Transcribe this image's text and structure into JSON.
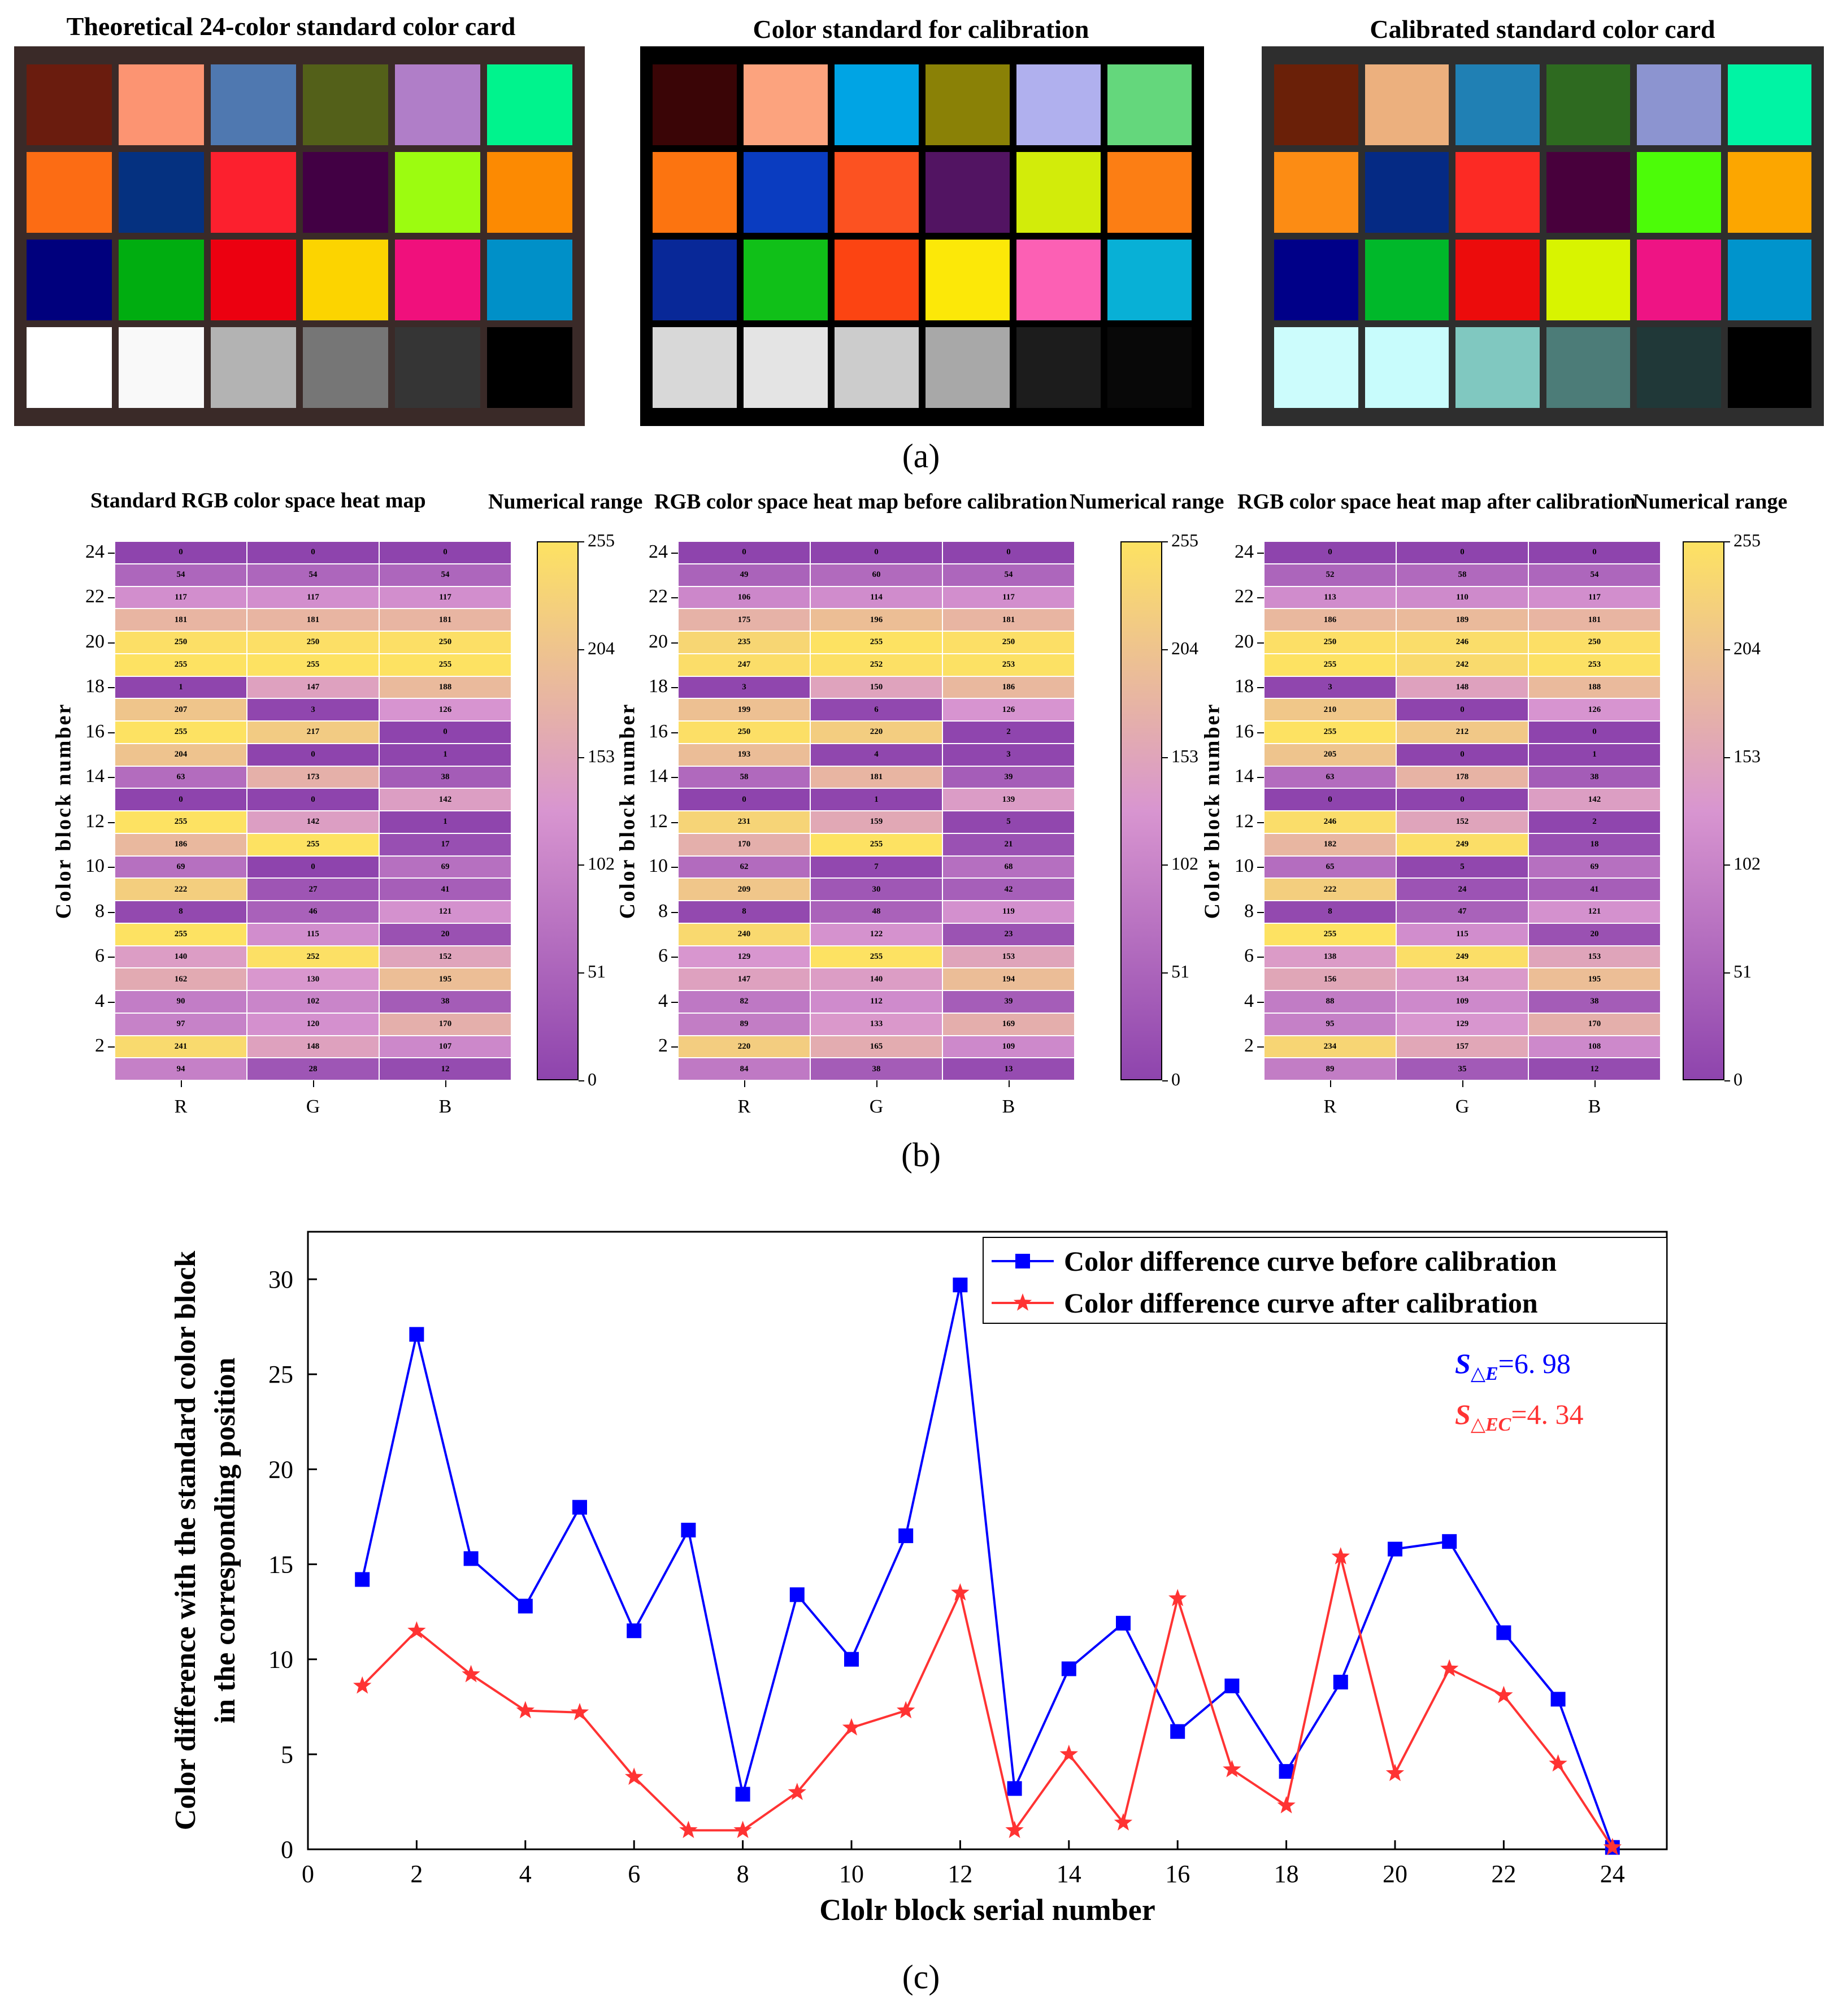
{
  "panel_a": {
    "label": "(a)",
    "cards": [
      {
        "title": "Theoretical 24-color standard color card",
        "bg": "#3a2a28",
        "colors": [
          [
            "#6a1c0e",
            "#fc9472",
            "#4f78b0",
            "#536019",
            "#b07ec8",
            "#00f38d"
          ],
          [
            "#fc6c14",
            "#053180",
            "#fc202e",
            "#420044",
            "#9cfc10",
            "#fc8a02"
          ],
          [
            "#00007d",
            "#00ad10",
            "#ec0010",
            "#fcd400",
            "#f0107c",
            "#0090c8"
          ],
          [
            "#ffffff",
            "#f9f9f9",
            "#b3b3b3",
            "#767676",
            "#353535",
            "#000000"
          ]
        ]
      },
      {
        "title": "Color standard for calibration",
        "bg": "#000000",
        "colors": [
          [
            "#3a0506",
            "#fca37e",
            "#00a4e4",
            "#8a8106",
            "#b0b0ee",
            "#64d77c"
          ],
          [
            "#fc7410",
            "#0a3cc0",
            "#fc5221",
            "#521462",
            "#d2ec0a",
            "#fc7e14"
          ],
          [
            "#082898",
            "#10c018",
            "#fc4412",
            "#fce808",
            "#fc60b4",
            "#08b0d6"
          ],
          [
            "#d8d8d8",
            "#e4e4e4",
            "#cccccc",
            "#a8a8a8",
            "#1c1c1c",
            "#080808"
          ]
        ]
      },
      {
        "title": "Calibrated standard color card",
        "bg": "#2e2e2e",
        "colors": [
          [
            "#6a2008",
            "#ecb07e",
            "#2080b4",
            "#2e6a20",
            "#8c94d0",
            "#00f4a4"
          ],
          [
            "#fc8c14",
            "#052a84",
            "#fc2a24",
            "#48003c",
            "#4cfc08",
            "#fca600"
          ],
          [
            "#000088",
            "#00b82a",
            "#ec0c0c",
            "#d8f400",
            "#ee1484",
            "#0094cc"
          ],
          [
            "#ccfcfc",
            "#c8fcfc",
            "#80c8c0",
            "#4c7c78",
            "#203838",
            "#000000"
          ]
        ]
      }
    ]
  },
  "panel_b": {
    "label": "(b)",
    "colorbar_title": "Numerical range",
    "colorbar_ticks": [
      "255",
      "204",
      "153",
      "102",
      "51",
      "0"
    ],
    "ylabel": "Color block number",
    "yticks": [
      "24",
      "22",
      "20",
      "18",
      "16",
      "14",
      "12",
      "10",
      "8",
      "6",
      "4",
      "2"
    ],
    "xticks": [
      "R",
      "G",
      "B"
    ],
    "low_color": "#8e44ad",
    "high_color": "#fde262",
    "maps": [
      {
        "title": "Standard RGB color space heat map",
        "rows": [
          [
            "0",
            "0",
            "0"
          ],
          [
            "54",
            "54",
            "54"
          ],
          [
            "117",
            "117",
            "117"
          ],
          [
            "181",
            "181",
            "181"
          ],
          [
            "250",
            "250",
            "250"
          ],
          [
            "255",
            "255",
            "255"
          ],
          [
            "1",
            "147",
            "188"
          ],
          [
            "207",
            "3",
            "126"
          ],
          [
            "255",
            "217",
            "0"
          ],
          [
            "204",
            "0",
            "1"
          ],
          [
            "63",
            "173",
            "38"
          ],
          [
            "0",
            "0",
            "142"
          ],
          [
            "255",
            "142",
            "1"
          ],
          [
            "186",
            "255",
            "17"
          ],
          [
            "69",
            "0",
            "69"
          ],
          [
            "222",
            "27",
            "41"
          ],
          [
            "8",
            "46",
            "121"
          ],
          [
            "255",
            "115",
            "20"
          ],
          [
            "140",
            "252",
            "152"
          ],
          [
            "162",
            "130",
            "195"
          ],
          [
            "90",
            "102",
            "38"
          ],
          [
            "97",
            "120",
            "170"
          ],
          [
            "241",
            "148",
            "107"
          ],
          [
            "94",
            "28",
            "12"
          ]
        ]
      },
      {
        "title": "RGB color space heat map before calibration",
        "rows": [
          [
            "0",
            "0",
            "0"
          ],
          [
            "49",
            "60",
            "54"
          ],
          [
            "106",
            "114",
            "117"
          ],
          [
            "175",
            "196",
            "181"
          ],
          [
            "235",
            "255",
            "250"
          ],
          [
            "247",
            "252",
            "253"
          ],
          [
            "3",
            "150",
            "186"
          ],
          [
            "199",
            "6",
            "126"
          ],
          [
            "250",
            "220",
            "2"
          ],
          [
            "193",
            "4",
            "3"
          ],
          [
            "58",
            "181",
            "39"
          ],
          [
            "0",
            "1",
            "139"
          ],
          [
            "231",
            "159",
            "5"
          ],
          [
            "170",
            "255",
            "21"
          ],
          [
            "62",
            "7",
            "68"
          ],
          [
            "209",
            "30",
            "42"
          ],
          [
            "8",
            "48",
            "119"
          ],
          [
            "240",
            "122",
            "23"
          ],
          [
            "129",
            "255",
            "153"
          ],
          [
            "147",
            "140",
            "194"
          ],
          [
            "82",
            "112",
            "39"
          ],
          [
            "89",
            "133",
            "169"
          ],
          [
            "220",
            "165",
            "109"
          ],
          [
            "84",
            "38",
            "13"
          ]
        ]
      },
      {
        "title": "RGB color space heat map after calibration",
        "rows": [
          [
            "0",
            "0",
            "0"
          ],
          [
            "52",
            "58",
            "54"
          ],
          [
            "113",
            "110",
            "117"
          ],
          [
            "186",
            "189",
            "181"
          ],
          [
            "250",
            "246",
            "250"
          ],
          [
            "255",
            "242",
            "253"
          ],
          [
            "3",
            "148",
            "188"
          ],
          [
            "210",
            "0",
            "126"
          ],
          [
            "255",
            "212",
            "0"
          ],
          [
            "205",
            "0",
            "1"
          ],
          [
            "63",
            "178",
            "38"
          ],
          [
            "0",
            "0",
            "142"
          ],
          [
            "246",
            "152",
            "2"
          ],
          [
            "182",
            "249",
            "18"
          ],
          [
            "65",
            "5",
            "69"
          ],
          [
            "222",
            "24",
            "41"
          ],
          [
            "8",
            "47",
            "121"
          ],
          [
            "255",
            "115",
            "20"
          ],
          [
            "138",
            "249",
            "153"
          ],
          [
            "156",
            "134",
            "195"
          ],
          [
            "88",
            "109",
            "38"
          ],
          [
            "95",
            "129",
            "170"
          ],
          [
            "234",
            "157",
            "108"
          ],
          [
            "89",
            "35",
            "12"
          ]
        ]
      }
    ]
  },
  "panel_c": {
    "label": "(c)",
    "chart_data": {
      "type": "line",
      "xlabel": "Clolr block serial number",
      "ylabel": "Color difference with the standard color block in the corresponding position",
      "ylabel_lines": [
        "Color difference with the standard color block",
        "in the corresponding position"
      ],
      "xlim": [
        0,
        25
      ],
      "ylim": [
        0,
        32.5
      ],
      "xticks": [
        "0",
        "2",
        "4",
        "6",
        "8",
        "10",
        "12",
        "14",
        "16",
        "18",
        "20",
        "22",
        "24"
      ],
      "yticks": [
        "0",
        "5",
        "10",
        "15",
        "20",
        "25",
        "30"
      ],
      "x": [
        1,
        2,
        3,
        4,
        5,
        6,
        7,
        8,
        9,
        10,
        11,
        12,
        13,
        14,
        15,
        16,
        17,
        18,
        19,
        20,
        21,
        22,
        23,
        24
      ],
      "series": [
        {
          "name": "Color difference curve before calibration",
          "color": "#0000ff",
          "marker": "square",
          "values": [
            14.2,
            27.1,
            15.3,
            12.8,
            18.0,
            11.5,
            16.8,
            2.9,
            13.4,
            10.0,
            16.5,
            29.7,
            3.2,
            9.5,
            11.9,
            6.2,
            8.6,
            4.1,
            8.8,
            15.8,
            16.2,
            11.4,
            7.9,
            0.1
          ]
        },
        {
          "name": "Color difference curve after calibration",
          "color": "#ff3333",
          "marker": "star",
          "values": [
            8.6,
            11.5,
            9.2,
            7.3,
            7.2,
            3.8,
            1.0,
            1.0,
            3.0,
            6.4,
            7.3,
            13.5,
            1.0,
            5.0,
            1.4,
            13.2,
            4.2,
            2.3,
            15.4,
            4.0,
            9.5,
            8.1,
            4.5,
            0.1
          ]
        }
      ],
      "annotations": [
        {
          "sym": "S",
          "sub": "△E",
          "value": "=6. 98",
          "color": "#0000ff"
        },
        {
          "sym": "S",
          "sub": "△EC",
          "value": "=4. 34",
          "color": "#ff3333"
        }
      ],
      "legend_position": "top-right"
    }
  }
}
